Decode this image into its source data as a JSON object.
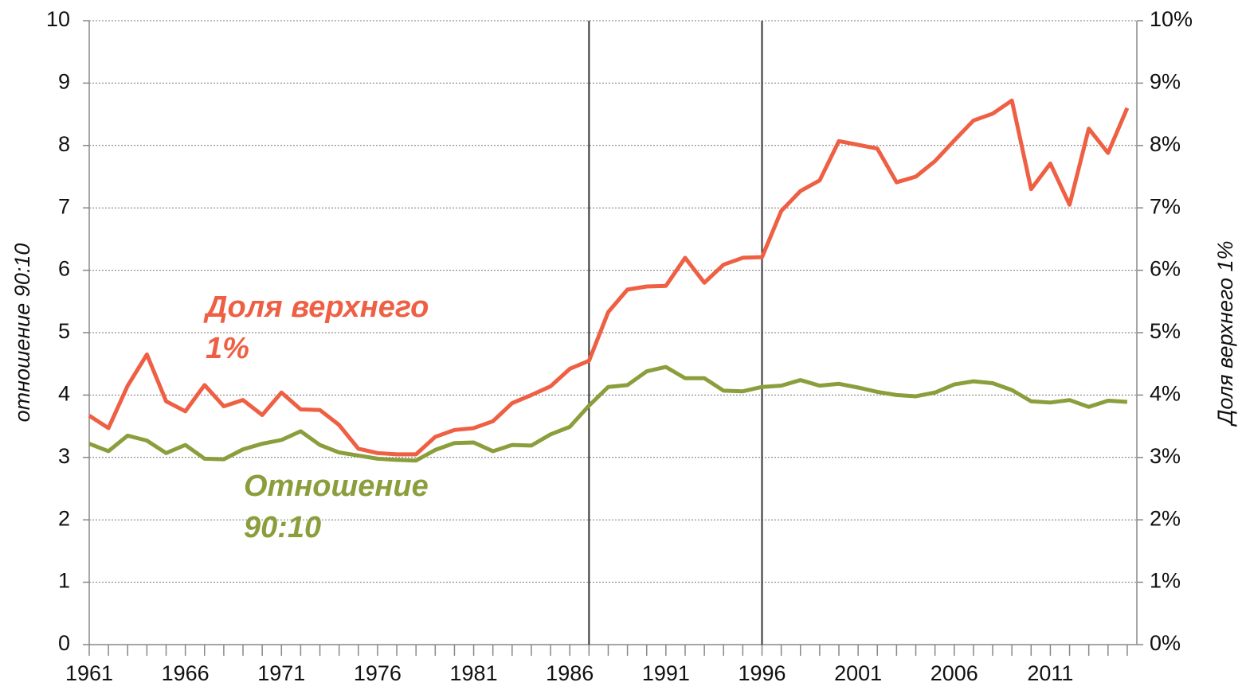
{
  "chart_data": {
    "type": "line",
    "y_label": "отношение 90:10",
    "y2_label": "Доля верхнего 1%",
    "x": [
      1961,
      1962,
      1963,
      1964,
      1965,
      1966,
      1967,
      1968,
      1969,
      1970,
      1971,
      1972,
      1973,
      1974,
      1975,
      1976,
      1977,
      1978,
      1979,
      1980,
      1981,
      1982,
      1983,
      1984,
      1985,
      1986,
      1987,
      1988,
      1989,
      1990,
      1991,
      1992,
      1993,
      1994,
      1995,
      1996,
      1997,
      1998,
      1999,
      2000,
      2001,
      2002,
      2003,
      2004,
      2005,
      2006,
      2007,
      2008,
      2009,
      2010,
      2011,
      2012,
      2013,
      2014,
      2015
    ],
    "xlim": [
      1961,
      2015.5
    ],
    "xticks": [
      1961,
      1966,
      1971,
      1976,
      1981,
      1986,
      1991,
      1996,
      2001,
      2006,
      2011
    ],
    "ylim": [
      0,
      10
    ],
    "yticks": [
      0,
      1,
      2,
      3,
      4,
      5,
      6,
      7,
      8,
      9,
      10
    ],
    "y2lim": [
      0,
      10
    ],
    "y2ticks": [
      {
        "value": 0,
        "label": "0%"
      },
      {
        "value": 1,
        "label": "1%"
      },
      {
        "value": 2,
        "label": "2%"
      },
      {
        "value": 3,
        "label": "3%"
      },
      {
        "value": 4,
        "label": "4%"
      },
      {
        "value": 5,
        "label": "5%"
      },
      {
        "value": 6,
        "label": "6%"
      },
      {
        "value": 7,
        "label": "7%"
      },
      {
        "value": 8,
        "label": "8%"
      },
      {
        "value": 9,
        "label": "9%"
      },
      {
        "value": 10,
        "label": "10%"
      }
    ],
    "grid": true,
    "vlines": [
      1987,
      1996
    ],
    "series": [
      {
        "name": "Доля верхнего 1%",
        "color": "#ee5f43",
        "axis": "y2",
        "values": [
          3.67,
          3.47,
          4.15,
          4.65,
          3.9,
          3.74,
          4.16,
          3.82,
          3.92,
          3.68,
          4.04,
          3.77,
          3.76,
          3.52,
          3.14,
          3.07,
          3.05,
          3.05,
          3.33,
          3.44,
          3.47,
          3.58,
          3.87,
          4.0,
          4.14,
          4.42,
          4.55,
          5.33,
          5.69,
          5.74,
          5.75,
          6.2,
          5.8,
          6.09,
          6.2,
          6.21,
          6.95,
          7.27,
          7.44,
          8.07,
          8.01,
          7.95,
          7.41,
          7.5,
          7.75,
          8.08,
          8.4,
          8.51,
          8.72,
          7.3,
          7.71,
          7.05,
          8.27,
          7.88,
          8.6
        ]
      },
      {
        "name": "Отношение 90:10",
        "color": "#8a9e3c",
        "axis": "y",
        "values": [
          3.22,
          3.1,
          3.35,
          3.27,
          3.07,
          3.2,
          2.98,
          2.97,
          3.13,
          3.22,
          3.28,
          3.42,
          3.2,
          3.08,
          3.03,
          2.98,
          2.96,
          2.95,
          3.12,
          3.23,
          3.24,
          3.1,
          3.2,
          3.19,
          3.37,
          3.49,
          3.83,
          4.13,
          4.16,
          4.38,
          4.45,
          4.27,
          4.27,
          4.07,
          4.06,
          4.13,
          4.15,
          4.24,
          4.15,
          4.18,
          4.12,
          4.05,
          4.0,
          3.98,
          4.04,
          4.17,
          4.22,
          4.19,
          4.08,
          3.9,
          3.88,
          3.92,
          3.81,
          3.91,
          3.89
        ]
      }
    ],
    "annotations": [
      {
        "lines": [
          "Доля верхнего",
          "1%"
        ],
        "color": "#ee5f43"
      },
      {
        "lines": [
          "Отношение",
          "90:10"
        ],
        "color": "#8a9e3c"
      }
    ]
  }
}
